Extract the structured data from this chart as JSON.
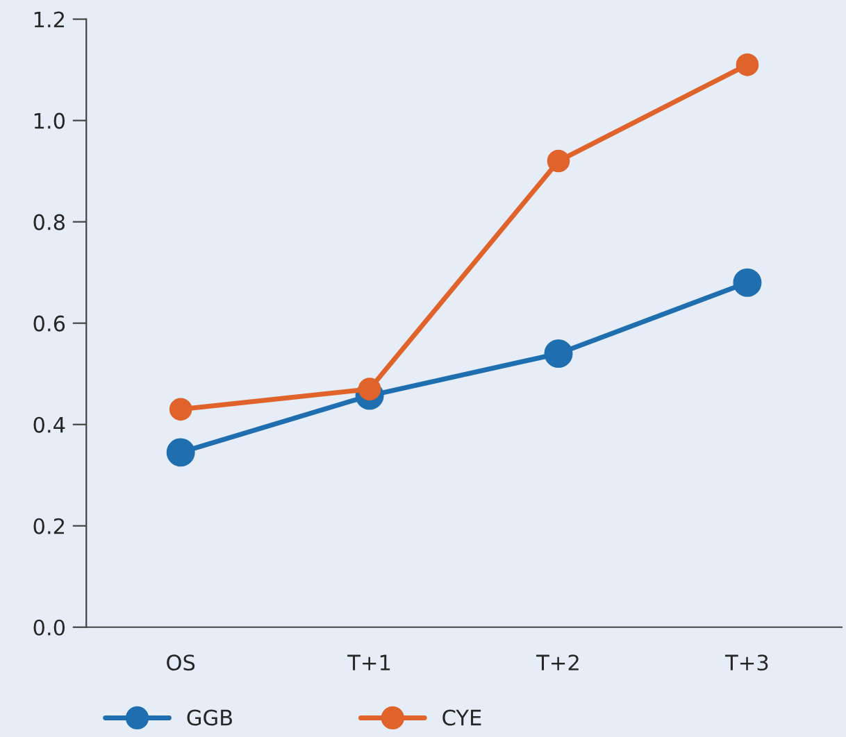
{
  "chart_data": {
    "type": "line",
    "categories": [
      "OS",
      "T+1",
      "T+2",
      "T+3"
    ],
    "series": [
      {
        "name": "GGB",
        "color": "#1f6fb0",
        "values": [
          0.345,
          0.457,
          0.54,
          0.68
        ]
      },
      {
        "name": "CYE",
        "color": "#e0632b",
        "values": [
          0.43,
          0.47,
          0.92,
          1.11
        ]
      }
    ],
    "ylim": [
      0,
      1.2
    ],
    "yticks": [
      {
        "value": 0,
        "label": "0.0"
      },
      0.2,
      0.4,
      0.6,
      0.8,
      {
        "value": 1,
        "label": "1.0"
      },
      1.2
    ],
    "grid": false,
    "legend": "bottom",
    "marker": "circle",
    "line_style": "solid"
  }
}
